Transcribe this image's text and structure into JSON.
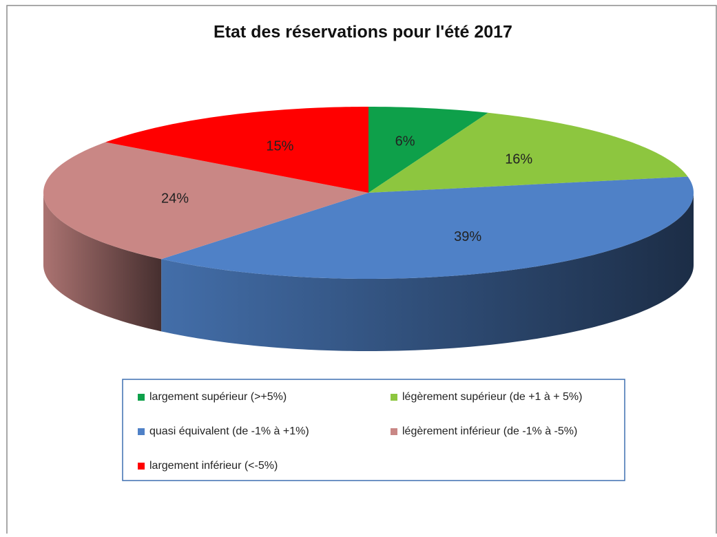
{
  "chart_data": {
    "type": "pie",
    "title": "Etat des réservations pour l'été 2017",
    "categories": [
      "largement supérieur (>+5%)",
      "légèrement supérieur (de +1 à + 5%)",
      "quasi équivalent (de -1% à +1%)",
      "légèrement inférieur (de -1% à -5%)",
      "largement inférieur (<-5%)"
    ],
    "values": [
      6,
      16,
      39,
      24,
      15
    ],
    "value_labels": [
      "6%",
      "16%",
      "39%",
      "24%",
      "15%"
    ],
    "colors": [
      "#0ea04a",
      "#8dc63f",
      "#4f81c7",
      "#c98785",
      "#ff0000"
    ]
  }
}
